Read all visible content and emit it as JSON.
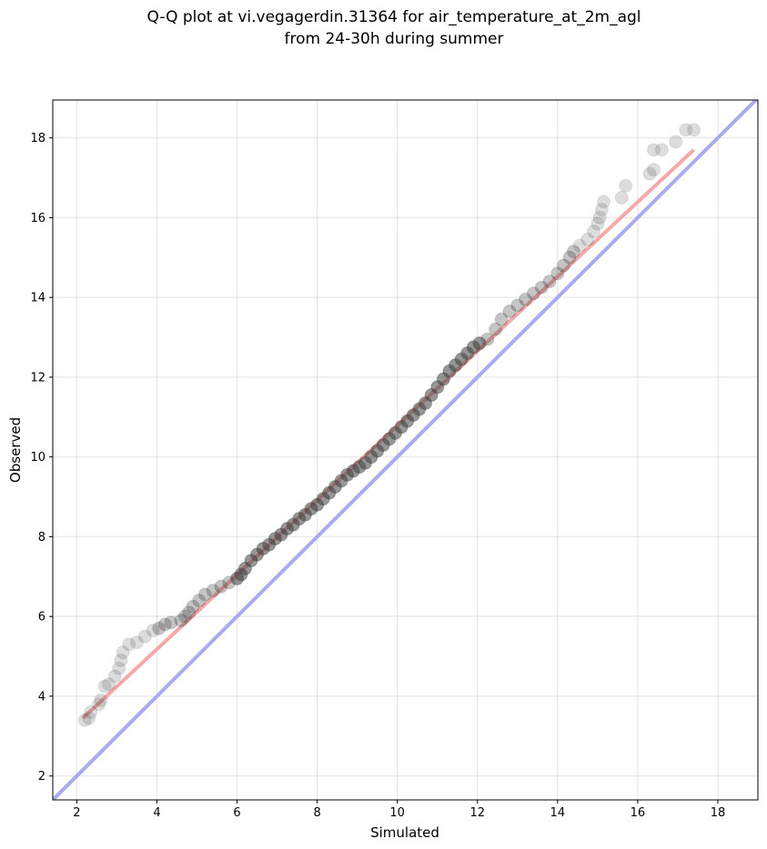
{
  "chart_data": {
    "type": "scatter",
    "title": [
      "Q-Q plot at vi.vegagerdin.31364 for air_temperature_at_2m_agl",
      "from 24-30h during summer"
    ],
    "xlabel": "Simulated",
    "ylabel": "Observed",
    "xlim": [
      1.4,
      19.0
    ],
    "ylim": [
      1.4,
      18.95
    ],
    "xticks": [
      "2",
      "4",
      "6",
      "8",
      "10",
      "12",
      "14",
      "16",
      "18"
    ],
    "yticks": [
      "2",
      "4",
      "6",
      "8",
      "10",
      "12",
      "14",
      "16",
      "18"
    ],
    "grid": true,
    "reference_line": {
      "name": "1:1",
      "color": "#aaaaf0",
      "x": [
        1.4,
        19.0
      ],
      "y": [
        1.4,
        19.0
      ]
    },
    "fit_line": {
      "color": "#f5a8a8",
      "x": [
        2.15,
        17.4
      ],
      "y": [
        3.45,
        17.7
      ]
    },
    "quantiles": [
      [
        2.2,
        3.4
      ],
      [
        2.3,
        3.45
      ],
      [
        2.35,
        3.6
      ],
      [
        2.55,
        3.8
      ],
      [
        2.6,
        3.9
      ],
      [
        2.7,
        4.25
      ],
      [
        2.8,
        4.3
      ],
      [
        2.95,
        4.5
      ],
      [
        3.05,
        4.7
      ],
      [
        3.1,
        4.9
      ],
      [
        3.15,
        5.1
      ],
      [
        3.3,
        5.3
      ],
      [
        3.5,
        5.35
      ],
      [
        3.7,
        5.5
      ],
      [
        3.9,
        5.65
      ],
      [
        4.05,
        5.7
      ],
      [
        4.2,
        5.8
      ],
      [
        4.35,
        5.85
      ],
      [
        4.6,
        5.9
      ],
      [
        4.7,
        6.0
      ],
      [
        4.8,
        6.1
      ],
      [
        4.9,
        6.25
      ],
      [
        5.05,
        6.4
      ],
      [
        5.2,
        6.55
      ],
      [
        5.4,
        6.65
      ],
      [
        5.6,
        6.75
      ],
      [
        5.8,
        6.85
      ],
      [
        6.0,
        6.95
      ],
      [
        6.1,
        7.05
      ],
      [
        6.2,
        7.2
      ],
      [
        6.35,
        7.4
      ],
      [
        6.5,
        7.55
      ],
      [
        6.65,
        7.7
      ],
      [
        6.8,
        7.8
      ],
      [
        6.95,
        7.95
      ],
      [
        7.1,
        8.05
      ],
      [
        7.25,
        8.2
      ],
      [
        7.4,
        8.3
      ],
      [
        7.55,
        8.45
      ],
      [
        7.7,
        8.55
      ],
      [
        7.85,
        8.7
      ],
      [
        8.0,
        8.8
      ],
      [
        8.15,
        8.95
      ],
      [
        8.3,
        9.1
      ],
      [
        8.45,
        9.25
      ],
      [
        8.6,
        9.4
      ],
      [
        8.75,
        9.55
      ],
      [
        8.9,
        9.65
      ],
      [
        9.05,
        9.75
      ],
      [
        9.2,
        9.85
      ],
      [
        9.35,
        10.0
      ],
      [
        9.5,
        10.15
      ],
      [
        9.65,
        10.3
      ],
      [
        9.8,
        10.45
      ],
      [
        9.95,
        10.6
      ],
      [
        10.1,
        10.75
      ],
      [
        10.25,
        10.9
      ],
      [
        10.4,
        11.05
      ],
      [
        10.55,
        11.2
      ],
      [
        10.7,
        11.35
      ],
      [
        10.85,
        11.55
      ],
      [
        11.0,
        11.75
      ],
      [
        11.15,
        11.95
      ],
      [
        11.3,
        12.15
      ],
      [
        11.45,
        12.3
      ],
      [
        11.6,
        12.45
      ],
      [
        11.75,
        12.6
      ],
      [
        11.9,
        12.75
      ],
      [
        12.05,
        12.85
      ],
      [
        12.25,
        12.95
      ],
      [
        12.45,
        13.2
      ],
      [
        12.6,
        13.45
      ],
      [
        12.8,
        13.65
      ],
      [
        13.0,
        13.8
      ],
      [
        13.2,
        13.95
      ],
      [
        13.4,
        14.1
      ],
      [
        13.6,
        14.25
      ],
      [
        13.8,
        14.4
      ],
      [
        14.0,
        14.6
      ],
      [
        14.15,
        14.8
      ],
      [
        14.3,
        15.0
      ],
      [
        14.4,
        15.15
      ],
      [
        14.55,
        15.3
      ],
      [
        14.75,
        15.45
      ],
      [
        14.9,
        15.65
      ],
      [
        15.0,
        15.85
      ],
      [
        15.05,
        16.0
      ],
      [
        15.1,
        16.2
      ],
      [
        15.15,
        16.4
      ],
      [
        15.6,
        16.5
      ],
      [
        15.7,
        16.8
      ],
      [
        16.3,
        17.1
      ],
      [
        16.4,
        17.2
      ],
      [
        16.4,
        17.7
      ],
      [
        16.6,
        17.7
      ],
      [
        16.95,
        17.9
      ],
      [
        17.2,
        18.2
      ],
      [
        17.4,
        18.2
      ]
    ]
  }
}
